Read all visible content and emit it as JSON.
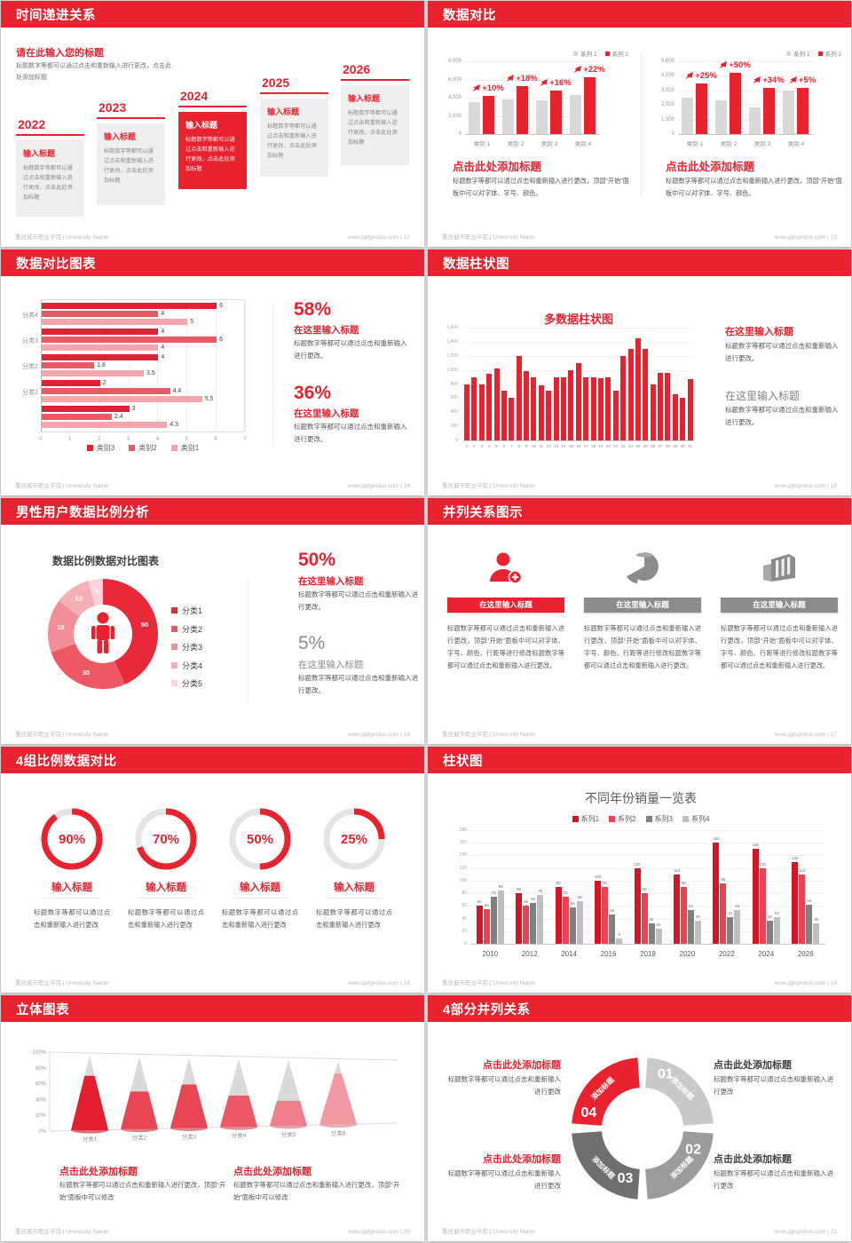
{
  "footer": {
    "left": "重庆城市职业学院 | University Name",
    "site": "www.pptgenius.com"
  },
  "colors": {
    "red": "#e8232f",
    "gray_bar": "#d9d9d9",
    "body_text": "#595959",
    "muted": "#8c8c8c"
  },
  "slides": {
    "s12": {
      "title": "时间递进关系",
      "footer_right": "www.pptgenius.com | 12",
      "intro_title": "请在此输入您的标题",
      "intro_body": "标题数字等都可以通过点击和重新输入进行更改，点击此处添加标题",
      "card_title": "输入标题",
      "card_body": "标题数字等都可以通过点击和重新输入进行更改，点击此处添加标题",
      "years": [
        "2022",
        "2023",
        "2024",
        "2025",
        "2026"
      ],
      "highlight": 2
    },
    "s13": {
      "title": "数据对比",
      "footer_right": "www.pptgenius.com | 13",
      "legend": [
        "系列 1",
        "系列 2"
      ],
      "block_title": "点击此处添加标题",
      "block_body": "标题数字等都可以通过点击和重新输入进行更改，顶部“开始”面板中可以对字体、字号、颜色。",
      "charts": [
        {
          "ymax": 8000,
          "yticks": [
            "8,000",
            "6,000",
            "4,000",
            "2,000",
            "0"
          ],
          "categories": [
            "类别 1",
            "类别 2",
            "类别 3",
            "类别 4"
          ],
          "gray": [
            3500,
            3800,
            3700,
            4300
          ],
          "red": [
            4200,
            5300,
            4800,
            6200
          ],
          "labels": [
            "+10%",
            "+18%",
            "+16%",
            "+22%"
          ]
        },
        {
          "ymax": 5000,
          "yticks": [
            "5,000",
            "4,000",
            "3,000",
            "2,000",
            "1,000",
            "0"
          ],
          "categories": [
            "类别 1",
            "类别 2",
            "类别 3",
            "类别 4"
          ],
          "gray": [
            2500,
            2300,
            1800,
            3000
          ],
          "red": [
            3500,
            4200,
            3200,
            3200
          ],
          "labels": [
            "+25%",
            "+50%",
            "+34%",
            "+5%"
          ]
        }
      ]
    },
    "s14": {
      "title": "数据对比图表",
      "footer_right": "www.pptgenius.com | 14",
      "groups": [
        "分类4",
        "分类3",
        "分类2",
        "分类1",
        ""
      ],
      "values": [
        [
          6,
          4,
          5
        ],
        [
          4,
          6,
          4
        ],
        [
          4,
          1.8,
          3.5
        ],
        [
          2,
          4.4,
          5.5
        ],
        [
          3,
          2.4,
          4.3
        ]
      ],
      "series_colors": [
        "#e02235",
        "#ea5a65",
        "#f3a6ae"
      ],
      "xticks": [
        "0",
        "1",
        "2",
        "3",
        "4",
        "5",
        "6",
        "7"
      ],
      "legend": [
        "类别3",
        "类别2",
        "类别1"
      ],
      "stats": [
        {
          "pct": "58%",
          "head": "在这里输入标题",
          "body": "标题数字等都可以通过点击和重新输入进行更改。"
        },
        {
          "pct": "36%",
          "head": "在这里输入标题",
          "body": "标题数字等都可以通过点击和重新输入进行更改。"
        }
      ]
    },
    "s15": {
      "title": "数据柱状图",
      "footer_right": "www.pptgenius.com | 15",
      "chart_title": "多数据柱状图",
      "ymax": 1600,
      "yticks": [
        "1,600",
        "1,400",
        "1,200",
        "1,000",
        "800",
        "600",
        "400",
        "200",
        "0"
      ],
      "values": [
        800,
        900,
        800,
        950,
        1020,
        700,
        600,
        1200,
        980,
        900,
        780,
        700,
        890,
        900,
        1000,
        1100,
        900,
        890,
        880,
        900,
        700,
        1200,
        1300,
        1450,
        1300,
        800,
        960,
        960,
        660,
        600,
        870
      ],
      "blocks": [
        {
          "head": "在这里输入标题",
          "body": "标题数字等都可以通过点击和重新输入进行更改。",
          "tone": "red"
        },
        {
          "head": "在这里输入标题",
          "body": "标题数字等都可以通过点击和重新输入进行更改。",
          "tone": "gray"
        }
      ]
    },
    "s16": {
      "title": "男性用户数据比例分析",
      "footer_right": "www.pptgenius.com | 16",
      "chart_title": "数据比例数据对比图表",
      "slices": [
        {
          "label": "50",
          "value": 50,
          "color": "#e8293a"
        },
        {
          "label": "30",
          "value": 30,
          "color": "#ee5864"
        },
        {
          "label": "18",
          "value": 18,
          "color": "#f18e97"
        },
        {
          "label": "12",
          "value": 12,
          "color": "#f5afb6"
        },
        {
          "label": "5",
          "value": 5,
          "color": "#fad4d8"
        }
      ],
      "legend": [
        "分类1",
        "分类2",
        "分类3",
        "分类4",
        "分类5"
      ],
      "stats": [
        {
          "pct": "50%",
          "head": "在这里输入标题",
          "body": "标题数字等都可以通过点击和重新输入进行更改。",
          "tone": "red"
        },
        {
          "pct": "5%",
          "head": "在这里输入标题",
          "body": "标题数字等都可以通过点击和重新输入进行更改。",
          "tone": "gray"
        }
      ]
    },
    "s17": {
      "title": "并列关系图示",
      "footer_right": "www.pptgenius.com | 17",
      "cols": [
        {
          "icon": "person-plus",
          "accent": "red",
          "head": "在这里输入标题",
          "body": "标题数字等都可以通过点击和重新输入进行更改，顶部“开始”面板中可以对字体、字号、颜色、行距等进行修改标题数字等都可以通过点击和重新输入进行更改。"
        },
        {
          "icon": "pie-3d",
          "accent": "gray",
          "head": "在这里输入标题",
          "body": "标题数字等都可以通过点击和重新输入进行更改，顶部“开始”面板中可以对字体、字号、颜色、行距等进行修改标题数字等都可以通过点击和重新输入进行更改。"
        },
        {
          "icon": "building",
          "accent": "gray",
          "head": "在这里输入标题",
          "body": "标题数字等都可以通过点击和重新输入进行更改，顶部“开始”面板中可以对字体、字号、颜色、行距等进行修改标题数字等都可以通过点击和重新输入进行更改。"
        }
      ]
    },
    "s18": {
      "title": "4组比例数据对比",
      "footer_right": "www.pptgenius.com | 18",
      "gauges": [
        {
          "pct": 90,
          "label": "90%"
        },
        {
          "pct": 70,
          "label": "70%"
        },
        {
          "pct": 50,
          "label": "50%"
        },
        {
          "pct": 25,
          "label": "25%"
        }
      ],
      "item_title": "输入标题",
      "item_body": "标题数字等都可以通过点击和重新输入进行更改"
    },
    "s19": {
      "title": "柱状图",
      "footer_right": "www.pptgenius.com | 19",
      "chart_title": "不同年份销量一览表",
      "years": [
        "2010",
        "2012",
        "2014",
        "2016",
        "2018",
        "2020",
        "2022",
        "2024",
        "2026"
      ],
      "ymax": 180,
      "yticks": [
        0,
        20,
        40,
        60,
        80,
        100,
        120,
        140,
        160,
        180
      ],
      "series": [
        {
          "name": "系列1",
          "color": "#d21626",
          "values": [
            60,
            80,
            90,
            100,
            120,
            110,
            160,
            150,
            130
          ]
        },
        {
          "name": "系列2",
          "color": "#ee4252",
          "values": [
            55,
            60,
            75,
            90,
            80,
            90,
            96,
            120,
            110
          ]
        },
        {
          "name": "系列3",
          "color": "#808080",
          "values": [
            75,
            65,
            58,
            46,
            32,
            54,
            42,
            36,
            62
          ]
        },
        {
          "name": "系列4",
          "color": "#bfbfbf",
          "values": [
            85,
            78,
            68,
            8,
            24,
            36,
            53,
            42,
            32
          ]
        }
      ]
    },
    "s20": {
      "title": "立体图表",
      "footer_right": "www.pptgenius.com | 20",
      "categories": [
        "分类1",
        "分类2",
        "分类3",
        "分类4",
        "分类5",
        "分类6"
      ],
      "fills": [
        0.73,
        0.52,
        0.62,
        0.46,
        0.38,
        0.81
      ],
      "cone_colors": [
        "#e31f2f",
        "#e94653",
        "#e94653",
        "#ed5a66",
        "#f07f8a",
        "#f29aa3"
      ],
      "yticks": [
        "100%",
        "80%",
        "60%",
        "40%",
        "20%",
        "0%"
      ],
      "blocks": [
        {
          "head": "点击此处添加标题",
          "body": "标题数字等都可以通过点击和重新输入进行更改，顶部“开始”面板中可以修改"
        },
        {
          "head": "点击此处添加标题",
          "body": "标题数字等都可以通过点击和重新输入进行更改，顶部“开始”面板中可以修改"
        }
      ]
    },
    "s21": {
      "title": "4部分并列关系",
      "footer_right": "www.pptgenius.com | 21",
      "segments": [
        {
          "num": "01",
          "label": "添加标题",
          "color": "#c9c9c9"
        },
        {
          "num": "02",
          "label": "添加标题",
          "color": "#9c9c9c"
        },
        {
          "num": "03",
          "label": "添加标题",
          "color": "#6f6f6f"
        },
        {
          "num": "04",
          "label": "添加标题",
          "color": "#e8232f"
        }
      ],
      "blocks_left": [
        {
          "head": "点击此处添加标题",
          "body": "标题数字等都可以通过点击和重新输入进行更改"
        },
        {
          "head": "点击此处添加标题",
          "body": "标题数字等都可以通过点击和重新输入进行更改"
        }
      ],
      "blocks_right": [
        {
          "head": "点击此处添加标题",
          "body": "标题数字等都可以通过点击和重新输入进行更改"
        },
        {
          "head": "点击此处添加标题",
          "body": "标题数字等都可以通过点击和重新输入进行更改"
        }
      ]
    }
  }
}
